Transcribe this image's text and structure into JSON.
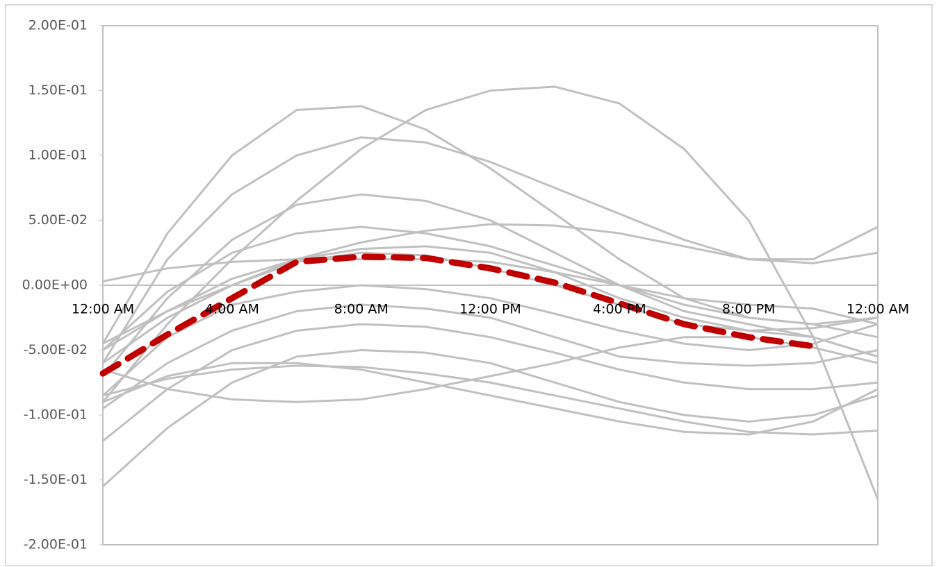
{
  "chart_data": {
    "type": "line",
    "x": [
      0,
      2,
      4,
      6,
      8,
      10,
      12,
      14,
      16,
      18,
      20,
      22,
      24
    ],
    "xlim": [
      0,
      24
    ],
    "xticks": [
      {
        "value": 0,
        "label": "12:00 AM"
      },
      {
        "value": 4,
        "label": "4:00 AM"
      },
      {
        "value": 8,
        "label": "8:00 AM"
      },
      {
        "value": 12,
        "label": "12:00 PM"
      },
      {
        "value": 16,
        "label": "4:00 PM"
      },
      {
        "value": 20,
        "label": "8:00 PM"
      },
      {
        "value": 24,
        "label": "12:00 AM"
      }
    ],
    "ylim": [
      -0.2,
      0.2
    ],
    "yticks": [
      {
        "value": -0.2,
        "label": "-2.00E-01"
      },
      {
        "value": -0.15,
        "label": "-1.50E-01"
      },
      {
        "value": -0.1,
        "label": "-1.00E-01"
      },
      {
        "value": -0.05,
        "label": "-5.00E-02"
      },
      {
        "value": 0,
        "label": "0.00E+00"
      },
      {
        "value": 0.05,
        "label": "5.00E-02"
      },
      {
        "value": 0.1,
        "label": "1.00E-01"
      },
      {
        "value": 0.15,
        "label": "1.50E-01"
      },
      {
        "value": 0.2,
        "label": "2.00E-01"
      }
    ],
    "series": [
      {
        "color": "#c0c0c0",
        "values": [
          -0.09,
          -0.03,
          0.02,
          0.065,
          0.105,
          0.135,
          0.15,
          0.153,
          0.14,
          0.105,
          0.05,
          -0.04,
          -0.165
        ]
      },
      {
        "color": "#c0c0c0",
        "values": [
          -0.045,
          0.04,
          0.1,
          0.135,
          0.138,
          0.12,
          0.09,
          0.055,
          0.02,
          -0.01,
          -0.025,
          -0.03,
          -0.025
        ]
      },
      {
        "color": "#c0c0c0",
        "values": [
          -0.06,
          0.02,
          0.07,
          0.1,
          0.114,
          0.11,
          0.095,
          0.075,
          0.055,
          0.035,
          0.02,
          0.017,
          0.025
        ]
      },
      {
        "color": "#c0c0c0",
        "values": [
          -0.07,
          -0.01,
          0.035,
          0.062,
          0.07,
          0.065,
          0.05,
          0.025,
          0.0,
          -0.02,
          -0.03,
          -0.04,
          -0.055
        ]
      },
      {
        "color": "#c0c0c0",
        "values": [
          -0.05,
          -0.005,
          0.025,
          0.04,
          0.045,
          0.04,
          0.03,
          0.015,
          0.0,
          -0.015,
          -0.025,
          -0.03,
          -0.04
        ]
      },
      {
        "color": "#c0c0c0",
        "values": [
          0.003,
          0.013,
          0.018,
          0.02,
          0.02,
          0.02,
          0.018,
          0.01,
          0.0,
          -0.01,
          -0.015,
          -0.018,
          -0.03
        ]
      },
      {
        "color": "#c0c0c0",
        "values": [
          -0.045,
          -0.02,
          0.0,
          0.02,
          0.033,
          0.042,
          0.047,
          0.046,
          0.04,
          0.03,
          0.02,
          0.02,
          0.045
        ]
      },
      {
        "color": "#c0c0c0",
        "values": [
          -0.06,
          -0.025,
          0.0,
          0.018,
          0.025,
          0.023,
          0.013,
          0.0,
          -0.015,
          -0.03,
          -0.035,
          -0.033,
          -0.025
        ]
      },
      {
        "color": "#c0c0c0",
        "values": [
          -0.085,
          -0.04,
          -0.015,
          -0.005,
          0.0,
          -0.003,
          -0.01,
          -0.022,
          -0.035,
          -0.045,
          -0.05,
          -0.045,
          -0.03
        ]
      },
      {
        "color": "#c0c0c0",
        "values": [
          -0.095,
          -0.06,
          -0.035,
          -0.02,
          -0.015,
          -0.018,
          -0.025,
          -0.04,
          -0.055,
          -0.06,
          -0.062,
          -0.06,
          -0.05
        ]
      },
      {
        "color": "#c0c0c0",
        "values": [
          -0.12,
          -0.08,
          -0.05,
          -0.035,
          -0.03,
          -0.032,
          -0.04,
          -0.052,
          -0.065,
          -0.075,
          -0.08,
          -0.08,
          -0.075
        ]
      },
      {
        "color": "#c0c0c0",
        "values": [
          -0.155,
          -0.11,
          -0.075,
          -0.055,
          -0.05,
          -0.052,
          -0.06,
          -0.075,
          -0.09,
          -0.1,
          -0.105,
          -0.1,
          -0.085
        ]
      },
      {
        "color": "#c0c0c0",
        "values": [
          -0.065,
          -0.08,
          -0.088,
          -0.09,
          -0.088,
          -0.08,
          -0.07,
          -0.06,
          -0.048,
          -0.04,
          -0.04,
          -0.048,
          -0.06
        ]
      },
      {
        "color": "#c0c0c0",
        "values": [
          -0.085,
          -0.072,
          -0.065,
          -0.062,
          -0.063,
          -0.068,
          -0.075,
          -0.085,
          -0.095,
          -0.105,
          -0.113,
          -0.115,
          -0.112
        ]
      },
      {
        "color": "#c0c0c0",
        "values": [
          -0.09,
          -0.07,
          -0.06,
          -0.06,
          -0.065,
          -0.075,
          -0.085,
          -0.095,
          -0.105,
          -0.113,
          -0.115,
          -0.105,
          -0.08
        ]
      },
      {
        "color": "#c0c0c0",
        "values": [
          -0.05,
          -0.02,
          0.005,
          0.02,
          0.028,
          0.03,
          0.025,
          0.01,
          -0.01,
          -0.025,
          -0.035,
          -0.04,
          -0.055
        ]
      },
      {
        "color": "#c00000",
        "dashed": true,
        "values": [
          -0.068,
          -0.038,
          -0.01,
          0.018,
          0.022,
          0.021,
          0.013,
          0.002,
          -0.014,
          -0.03,
          -0.04,
          -0.047,
          null
        ]
      }
    ]
  }
}
